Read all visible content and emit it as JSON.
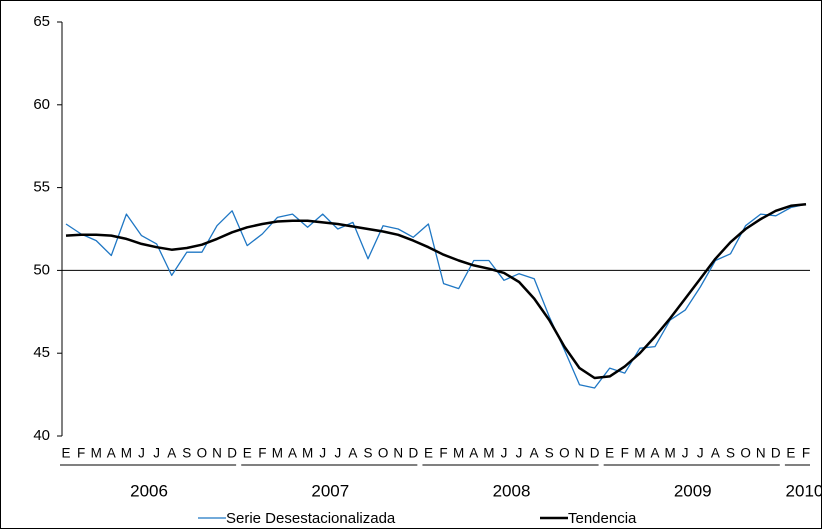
{
  "chart_data": {
    "type": "line",
    "categories": [
      "E",
      "F",
      "M",
      "A",
      "M",
      "J",
      "J",
      "A",
      "S",
      "O",
      "N",
      "D",
      "E",
      "F",
      "M",
      "A",
      "M",
      "J",
      "J",
      "A",
      "S",
      "O",
      "N",
      "D",
      "E",
      "F",
      "M",
      "A",
      "M",
      "J",
      "J",
      "A",
      "S",
      "O",
      "N",
      "D",
      "E",
      "F",
      "M",
      "A",
      "M",
      "J",
      "J",
      "A",
      "S",
      "O",
      "N",
      "D",
      "E",
      "F"
    ],
    "year_groups": [
      {
        "label": "2006",
        "count": 12
      },
      {
        "label": "2007",
        "count": 12
      },
      {
        "label": "2008",
        "count": 12
      },
      {
        "label": "2009",
        "count": 12
      },
      {
        "label": "2010",
        "count": 2
      }
    ],
    "series": [
      {
        "name": "Serie Desestacionalizada",
        "color": "#1f77c4",
        "width": 1.3,
        "values": [
          52.8,
          52.2,
          51.8,
          50.9,
          53.4,
          52.1,
          51.6,
          49.7,
          51.1,
          51.1,
          52.7,
          53.6,
          51.5,
          52.2,
          53.2,
          53.4,
          52.6,
          53.4,
          52.5,
          52.9,
          50.7,
          52.7,
          52.5,
          52.0,
          52.8,
          49.2,
          48.9,
          50.6,
          50.6,
          49.4,
          49.8,
          49.5,
          47.2,
          45.2,
          43.1,
          42.9,
          44.1,
          43.8,
          45.3,
          45.4,
          47.0,
          47.6,
          49.0,
          50.6,
          51.0,
          52.7,
          53.4,
          53.3,
          53.8,
          54.0
        ]
      },
      {
        "name": "Tendencia",
        "color": "#000000",
        "width": 2.5,
        "values": [
          52.1,
          52.15,
          52.15,
          52.1,
          51.9,
          51.6,
          51.4,
          51.25,
          51.35,
          51.55,
          51.9,
          52.3,
          52.6,
          52.8,
          52.95,
          53.0,
          53.0,
          52.9,
          52.8,
          52.65,
          52.5,
          52.35,
          52.15,
          51.8,
          51.4,
          50.95,
          50.6,
          50.3,
          50.1,
          49.85,
          49.3,
          48.3,
          47.0,
          45.4,
          44.1,
          43.5,
          43.6,
          44.2,
          45.0,
          46.0,
          47.1,
          48.3,
          49.5,
          50.7,
          51.7,
          52.5,
          53.1,
          53.6,
          53.9,
          54.0
        ]
      }
    ],
    "ylim": [
      40,
      65
    ],
    "yticks": [
      40,
      45,
      50,
      55,
      60,
      65
    ],
    "axis_line_at": 50,
    "legend": "bottom"
  }
}
